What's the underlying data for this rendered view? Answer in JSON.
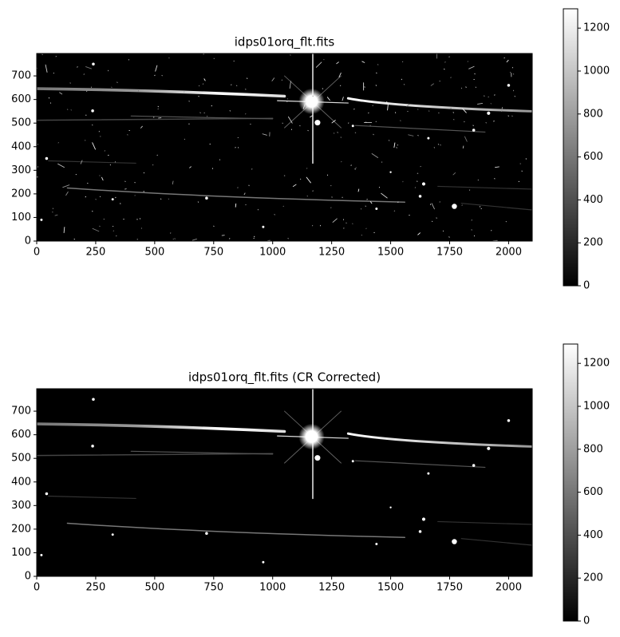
{
  "chart_data": [
    {
      "type": "image",
      "title": "idps01orq_flt.fits",
      "colormap": "gray",
      "xlim": [
        0,
        2100
      ],
      "ylim": [
        0,
        795
      ],
      "xticks": [
        0,
        250,
        500,
        750,
        1000,
        1250,
        1500,
        1750,
        2000
      ],
      "yticks": [
        0,
        100,
        200,
        300,
        400,
        500,
        600,
        700
      ],
      "clim": [
        0,
        1290
      ],
      "cticks": [
        0,
        200,
        400,
        600,
        800,
        1000,
        1200
      ]
    },
    {
      "type": "image",
      "title": "idps01orq_flt.fits (CR Corrected)",
      "colormap": "gray",
      "xlim": [
        0,
        2100
      ],
      "ylim": [
        0,
        795
      ],
      "xticks": [
        0,
        250,
        500,
        750,
        1000,
        1250,
        1500,
        1750,
        2000
      ],
      "yticks": [
        0,
        100,
        200,
        300,
        400,
        500,
        600,
        700
      ],
      "clim": [
        0,
        1290
      ],
      "cticks": [
        0,
        200,
        400,
        600,
        800,
        1000,
        1200
      ]
    }
  ]
}
